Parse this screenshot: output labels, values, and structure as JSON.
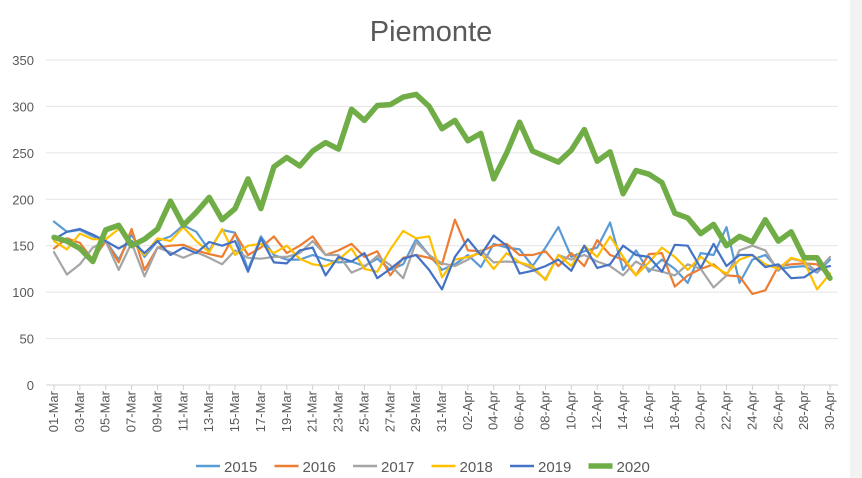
{
  "chart_data": {
    "type": "line",
    "title": "Piemonte",
    "xlabel": "",
    "ylabel": "",
    "ylim": [
      0,
      350
    ],
    "y_ticks": [
      0,
      50,
      100,
      150,
      200,
      250,
      300,
      350
    ],
    "grid": true,
    "legend_position": "bottom",
    "x_tick_labels": [
      "01-Mar",
      "03-Mar",
      "05-Mar",
      "07-Mar",
      "09-Mar",
      "11-Mar",
      "13-Mar",
      "15-Mar",
      "17-Mar",
      "19-Mar",
      "21-Mar",
      "23-Mar",
      "25-Mar",
      "27-Mar",
      "29-Mar",
      "31-Mar",
      "02-Apr",
      "04-Apr",
      "06-Apr",
      "08-Apr",
      "10-Apr",
      "12-Apr",
      "14-Apr",
      "16-Apr",
      "18-Apr",
      "20-Apr",
      "22-Apr",
      "24-Apr",
      "26-Apr",
      "28-Apr",
      "30-Apr"
    ],
    "x_range": "01-Mar to 30-Apr (daily, 61 points)",
    "series": [
      {
        "name": "2015",
        "color": "#5B9BD5",
        "values": [
          176,
          165,
          167,
          160,
          155,
          135,
          162,
          138,
          155,
          160,
          172,
          165,
          145,
          167,
          164,
          124,
          160,
          140,
          135,
          135,
          140,
          135,
          132,
          133,
          128,
          136,
          124,
          130,
          157,
          140,
          124,
          130,
          140,
          127,
          152,
          148,
          146,
          128,
          148,
          170,
          138,
          144,
          148,
          175,
          124,
          145,
          122,
          135,
          125,
          110,
          142,
          140,
          170,
          110,
          135,
          140,
          125,
          127,
          128,
          121,
          135
        ]
      },
      {
        "name": "2016",
        "color": "#ED7D31",
        "values": [
          147,
          158,
          153,
          135,
          155,
          132,
          168,
          124,
          148,
          150,
          151,
          145,
          141,
          138,
          163,
          140,
          148,
          160,
          142,
          150,
          160,
          140,
          145,
          152,
          138,
          144,
          118,
          137,
          140,
          137,
          130,
          178,
          145,
          144,
          150,
          152,
          140,
          140,
          144,
          128,
          142,
          128,
          156,
          140,
          135,
          118,
          141,
          142,
          106,
          118,
          125,
          130,
          118,
          117,
          98,
          102,
          128,
          130,
          131,
          130,
          115
        ]
      },
      {
        "name": "2017",
        "color": "#A5A5A5",
        "values": [
          143,
          119,
          130,
          148,
          155,
          124,
          153,
          117,
          148,
          143,
          137,
          143,
          137,
          130,
          145,
          137,
          136,
          138,
          138,
          142,
          155,
          140,
          140,
          121,
          127,
          139,
          129,
          115,
          154,
          140,
          131,
          128,
          135,
          145,
          132,
          133,
          132,
          125,
          114,
          140,
          135,
          140,
          133,
          128,
          118,
          133,
          125,
          122,
          118,
          130,
          125,
          105,
          118,
          145,
          150,
          145,
          123,
          136,
          133,
          122,
          138
        ]
      },
      {
        "name": "2018",
        "color": "#FFC000",
        "values": [
          155,
          146,
          163,
          157,
          157,
          168,
          155,
          140,
          158,
          155,
          170,
          155,
          143,
          168,
          140,
          150,
          152,
          142,
          150,
          136,
          130,
          128,
          135,
          147,
          125,
          122,
          146,
          166,
          158,
          160,
          116,
          135,
          138,
          142,
          125,
          142,
          132,
          128,
          113,
          140,
          128,
          150,
          138,
          160,
          138,
          118,
          132,
          148,
          138,
          124,
          138,
          128,
          120,
          135,
          140,
          130,
          125,
          137,
          133,
          103,
          120
        ]
      },
      {
        "name": "2019",
        "color": "#4472C4",
        "values": [
          157,
          165,
          168,
          162,
          155,
          147,
          155,
          142,
          155,
          140,
          148,
          142,
          154,
          150,
          155,
          122,
          158,
          132,
          131,
          145,
          148,
          118,
          138,
          133,
          142,
          115,
          125,
          136,
          140,
          124,
          103,
          138,
          157,
          140,
          161,
          150,
          120,
          123,
          128,
          135,
          123,
          150,
          126,
          130,
          150,
          140,
          138,
          122,
          151,
          150,
          126,
          152,
          128,
          140,
          140,
          127,
          130,
          115,
          116,
          125,
          128
        ]
      },
      {
        "name": "2020",
        "color": "#70AD47",
        "bold": true,
        "values": [
          159,
          155,
          147,
          133,
          167,
          172,
          150,
          157,
          168,
          198,
          172,
          186,
          202,
          178,
          190,
          222,
          190,
          235,
          245,
          236,
          252,
          261,
          254,
          297,
          285,
          301,
          302,
          310,
          313,
          300,
          276,
          285,
          263,
          271,
          222,
          250,
          283,
          252,
          246,
          240,
          253,
          275,
          241,
          251,
          206,
          231,
          227,
          218,
          185,
          180,
          163,
          173,
          150,
          160,
          154,
          178,
          155,
          165,
          137,
          137,
          115
        ]
      }
    ]
  }
}
